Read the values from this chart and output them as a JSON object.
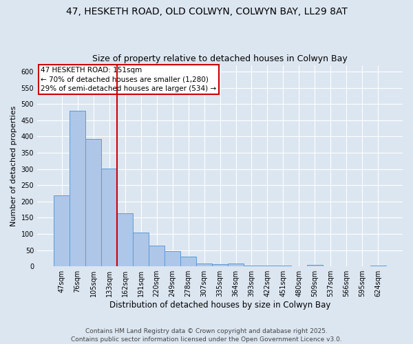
{
  "title_line1": "47, HESKETH ROAD, OLD COLWYN, COLWYN BAY, LL29 8AT",
  "title_line2": "Size of property relative to detached houses in Colwyn Bay",
  "xlabel": "Distribution of detached houses by size in Colwyn Bay",
  "ylabel": "Number of detached properties",
  "categories": [
    "47sqm",
    "76sqm",
    "105sqm",
    "133sqm",
    "162sqm",
    "191sqm",
    "220sqm",
    "249sqm",
    "278sqm",
    "307sqm",
    "335sqm",
    "364sqm",
    "393sqm",
    "422sqm",
    "451sqm",
    "480sqm",
    "509sqm",
    "537sqm",
    "566sqm",
    "595sqm",
    "624sqm"
  ],
  "values": [
    219,
    480,
    393,
    302,
    163,
    105,
    65,
    47,
    31,
    9,
    6,
    9,
    2,
    3,
    3,
    0,
    4,
    0,
    0,
    0,
    3
  ],
  "bar_color": "#aec6e8",
  "bar_edge_color": "#5b9bd5",
  "vline_x": 3.5,
  "vline_color": "#cc0000",
  "annotation_text": "47 HESKETH ROAD: 151sqm\n← 70% of detached houses are smaller (1,280)\n29% of semi-detached houses are larger (534) →",
  "annotation_box_color": "#ffffff",
  "annotation_edge_color": "#cc0000",
  "ylim": [
    0,
    620
  ],
  "yticks": [
    0,
    50,
    100,
    150,
    200,
    250,
    300,
    350,
    400,
    450,
    500,
    550,
    600
  ],
  "footer": "Contains HM Land Registry data © Crown copyright and database right 2025.\nContains public sector information licensed under the Open Government Licence v3.0.",
  "plot_bg_color": "#dce6f1",
  "fig_bg_color": "#dce6f1",
  "title_fontsize": 10,
  "subtitle_fontsize": 9,
  "xlabel_fontsize": 8.5,
  "ylabel_fontsize": 8,
  "tick_fontsize": 7,
  "footer_fontsize": 6.5,
  "annotation_fontsize": 7.5
}
